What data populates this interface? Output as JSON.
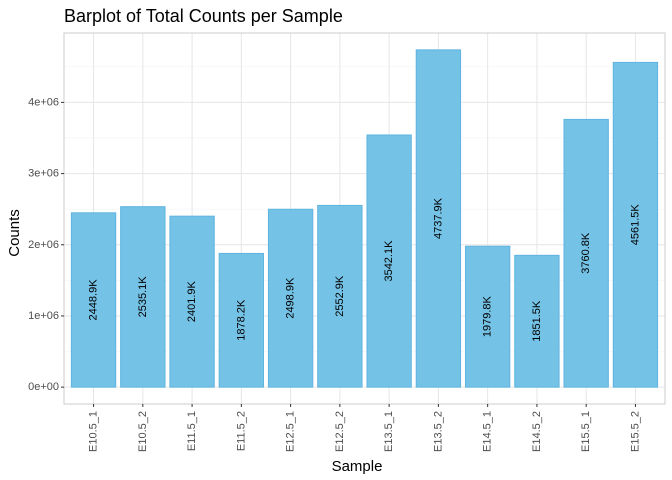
{
  "chart_data": {
    "type": "bar",
    "title": "Barplot of Total Counts per Sample",
    "xlabel": "Sample",
    "ylabel": "Counts",
    "categories": [
      "E10.5_1",
      "E10.5_2",
      "E11.5_1",
      "E11.5_2",
      "E12.5_1",
      "E12.5_2",
      "E13.5_1",
      "E13.5_2",
      "E14.5_1",
      "E14.5_2",
      "E15.5_1",
      "E15.5_2"
    ],
    "values": [
      2448900,
      2535100,
      2401900,
      1878200,
      2498900,
      2552900,
      3542100,
      4737900,
      1979800,
      1851500,
      3760800,
      4561500
    ],
    "data_labels": [
      "2448.9K",
      "2535.1K",
      "2401.9K",
      "1878.2K",
      "2498.9K",
      "2552.9K",
      "3542.1K",
      "4737.9K",
      "1979.8K",
      "1851.5K",
      "3760.8K",
      "4561.5K"
    ],
    "y_ticks": [
      0,
      1000000,
      2000000,
      3000000,
      4000000
    ],
    "y_tick_labels": [
      "0e+00",
      "1e+06",
      "2e+06",
      "3e+06",
      "4e+06"
    ],
    "ylim": [
      -236895,
      4974795
    ],
    "grid": true,
    "legend": "none",
    "colors": {
      "bar_fill": "#74c2e6",
      "bar_stroke": "#5fb4e0",
      "grid_major": "#e6e6e6",
      "grid_minor": "#f3f3f3",
      "panel_border": "#cccccc"
    }
  }
}
